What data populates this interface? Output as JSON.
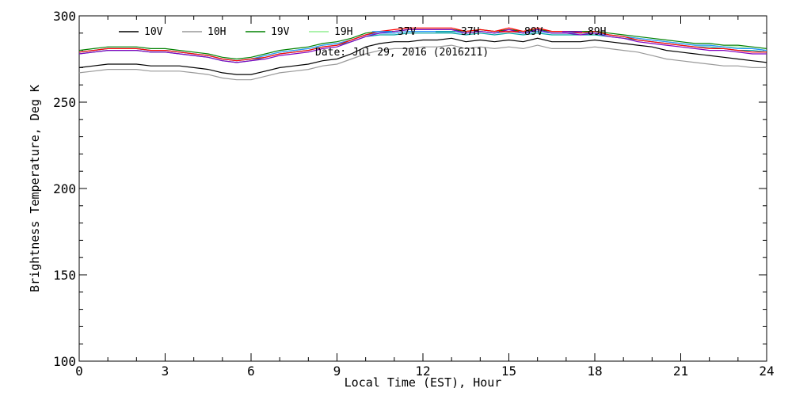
{
  "chart_data": {
    "type": "line",
    "title": "",
    "annotation": "Date: Jul 29, 2016 (2016211)",
    "xlabel": "Local Time (EST), Hour",
    "ylabel": "Brightness Temperature, Deg K",
    "xlim": [
      0,
      24
    ],
    "ylim": [
      100,
      300
    ],
    "x_ticks": [
      0,
      3,
      6,
      9,
      12,
      15,
      18,
      21,
      24
    ],
    "x_tick_labels": [
      "0",
      "3",
      "6",
      "9",
      "12",
      "15",
      "18",
      "21",
      "24"
    ],
    "y_ticks": [
      100,
      150,
      200,
      250,
      300
    ],
    "y_tick_labels": [
      "100",
      "150",
      "200",
      "250",
      "300"
    ],
    "grid": false,
    "legend_position": "top",
    "x": [
      0,
      0.5,
      1,
      1.5,
      2,
      2.5,
      3,
      3.5,
      4,
      4.5,
      5,
      5.5,
      6,
      6.5,
      7,
      7.5,
      8,
      8.5,
      9,
      9.5,
      10,
      10.5,
      11,
      11.5,
      12,
      12.5,
      13,
      13.5,
      14,
      14.5,
      15,
      15.5,
      16,
      16.5,
      17,
      17.5,
      18,
      18.5,
      19,
      19.5,
      20,
      20.5,
      21,
      21.5,
      22,
      22.5,
      23,
      23.5,
      24
    ],
    "series": [
      {
        "name": "10V",
        "color": "#000000",
        "values": [
          270,
          271,
          272,
          272,
          272,
          271,
          271,
          271,
          270,
          269,
          267,
          266,
          266,
          268,
          270,
          271,
          272,
          274,
          275,
          278,
          282,
          284,
          285,
          285,
          286,
          286,
          287,
          285,
          286,
          285,
          286,
          285,
          287,
          285,
          285,
          285,
          286,
          285,
          284,
          283,
          282,
          280,
          279,
          278,
          277,
          276,
          275,
          274,
          273
        ]
      },
      {
        "name": "10H",
        "color": "#999999",
        "values": [
          267,
          268,
          269,
          269,
          269,
          268,
          268,
          268,
          267,
          266,
          264,
          263,
          263,
          265,
          267,
          268,
          269,
          271,
          272,
          275,
          278,
          280,
          281,
          281,
          282,
          282,
          283,
          281,
          282,
          281,
          282,
          281,
          283,
          281,
          281,
          281,
          282,
          281,
          280,
          279,
          277,
          275,
          274,
          273,
          272,
          271,
          271,
          270,
          270
        ]
      },
      {
        "name": "19V",
        "color": "#008000",
        "values": [
          280,
          281,
          282,
          282,
          282,
          281,
          281,
          280,
          279,
          278,
          276,
          275,
          276,
          278,
          280,
          281,
          282,
          284,
          285,
          287,
          290,
          291,
          291,
          292,
          292,
          292,
          292,
          291,
          292,
          291,
          292,
          291,
          292,
          291,
          291,
          291,
          291,
          290,
          289,
          288,
          287,
          286,
          285,
          284,
          284,
          283,
          283,
          282,
          281
        ]
      },
      {
        "name": "19H",
        "color": "#90ee90",
        "values": [
          279,
          280,
          281,
          281,
          281,
          280,
          280,
          279,
          278,
          277,
          275,
          274,
          275,
          277,
          279,
          280,
          281,
          283,
          284,
          286,
          289,
          290,
          290,
          291,
          291,
          291,
          291,
          290,
          291,
          290,
          291,
          290,
          291,
          290,
          290,
          290,
          290,
          289,
          288,
          287,
          286,
          285,
          284,
          283,
          283,
          282,
          282,
          281,
          280
        ]
      },
      {
        "name": "37V",
        "color": "#1e90ff",
        "values": [
          279,
          280,
          281,
          281,
          281,
          280,
          280,
          279,
          278,
          277,
          275,
          274,
          275,
          277,
          279,
          280,
          281,
          283,
          284,
          286,
          289,
          290,
          290,
          291,
          291,
          291,
          291,
          290,
          291,
          290,
          291,
          290,
          291,
          290,
          290,
          290,
          290,
          289,
          288,
          287,
          286,
          285,
          284,
          283,
          283,
          282,
          281,
          281,
          280
        ]
      },
      {
        "name": "37H",
        "color": "#00a0a0",
        "values": [
          278,
          279,
          280,
          280,
          280,
          279,
          279,
          278,
          277,
          276,
          274,
          273,
          274,
          276,
          278,
          279,
          280,
          282,
          283,
          285,
          288,
          289,
          289,
          290,
          290,
          290,
          290,
          289,
          290,
          289,
          290,
          289,
          290,
          289,
          289,
          289,
          289,
          288,
          287,
          286,
          285,
          284,
          283,
          282,
          282,
          281,
          280,
          280,
          279
        ]
      },
      {
        "name": "89V",
        "color": "#ff0000",
        "values": [
          279,
          280,
          281,
          281,
          281,
          280,
          280,
          279,
          278,
          277,
          275,
          274,
          275,
          276,
          278,
          279,
          280,
          282,
          283,
          286,
          289,
          291,
          292,
          293,
          293,
          293,
          293,
          291,
          292,
          291,
          293,
          291,
          293,
          291,
          291,
          290,
          291,
          289,
          288,
          286,
          285,
          284,
          283,
          282,
          281,
          281,
          280,
          279,
          279
        ]
      },
      {
        "name": "89H",
        "color": "#8000c0",
        "values": [
          278,
          279,
          280,
          280,
          280,
          279,
          279,
          278,
          277,
          276,
          274,
          273,
          274,
          275,
          277,
          278,
          279,
          281,
          282,
          285,
          288,
          290,
          291,
          292,
          292,
          292,
          292,
          290,
          291,
          290,
          292,
          290,
          292,
          290,
          290,
          289,
          290,
          288,
          287,
          285,
          284,
          283,
          282,
          281,
          280,
          280,
          279,
          278,
          278
        ]
      }
    ]
  }
}
